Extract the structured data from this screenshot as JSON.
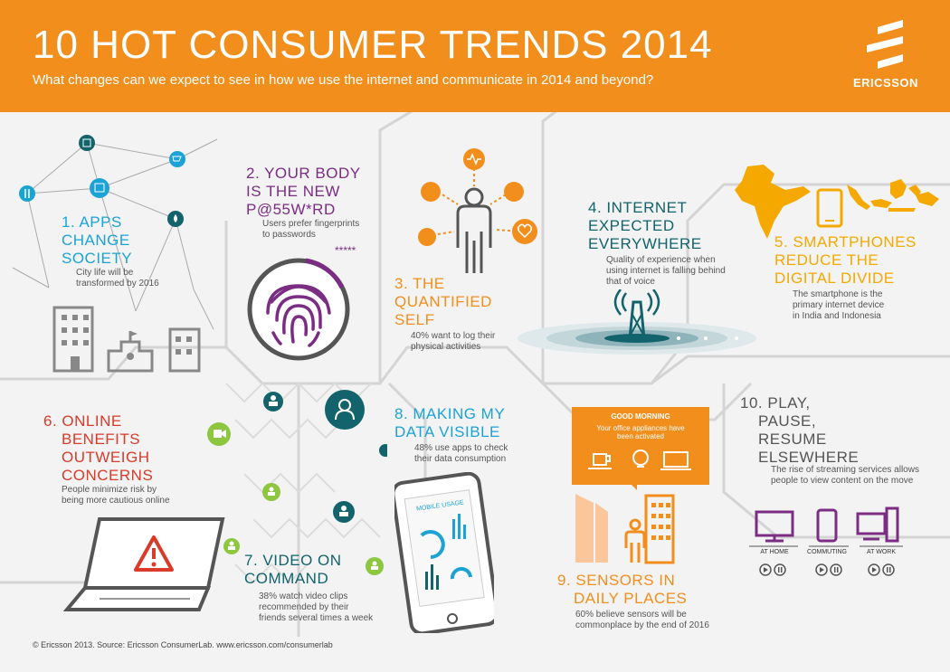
{
  "header": {
    "title": "10 HOT CONSUMER TRENDS 2014",
    "subtitle": "What changes can we expect to see in how we use the internet and communicate in 2014 and beyond?",
    "logo_text": "ERICSSON"
  },
  "trends": [
    {
      "title": [
        "1. APPS",
        "CHANGE",
        "SOCIETY"
      ],
      "text": [
        "City life will be",
        "transformed by 2016"
      ]
    },
    {
      "title": [
        "2. YOUR BODY",
        "IS THE NEW",
        "P@55W*RD"
      ],
      "text": [
        "Users prefer fingerprints",
        "to passwords"
      ],
      "password_stars": "*****"
    },
    {
      "title": [
        "3. THE",
        "QUANTIFIED",
        "SELF"
      ],
      "text": [
        "40% want to log their",
        "physical activities"
      ]
    },
    {
      "title": [
        "4. INTERNET",
        "EXPECTED",
        "EVERYWHERE"
      ],
      "text": [
        "Quality of experience when",
        "using internet is falling behind",
        "that of voice"
      ]
    },
    {
      "title": [
        "5. SMARTPHONES",
        "REDUCE THE",
        "DIGITAL DIVIDE"
      ],
      "text": [
        "The smartphone is the",
        "primary internet device",
        "in India and Indonesia"
      ]
    },
    {
      "title": [
        "6. ONLINE",
        "BENEFITS",
        "OUTWEIGH",
        "CONCERNS"
      ],
      "text": [
        "People minimize risk by",
        "being more cautious online"
      ]
    },
    {
      "title": [
        "7. VIDEO ON",
        "COMMAND"
      ],
      "text": [
        "38% watch video clips",
        "recommended by their",
        "friends several times a week"
      ]
    },
    {
      "title": [
        "8. MAKING MY",
        "DATA VISIBLE"
      ],
      "text": [
        "48% use apps to check",
        "their data consumption"
      ],
      "screen_label": "MOBILE USAGE"
    },
    {
      "title": [
        "9. SENSORS IN",
        "DAILY PLACES"
      ],
      "text": [
        "60% believe sensors will be",
        "commonplace by the end of 2016"
      ],
      "notice_title": "GOOD MORNING",
      "notice_text": [
        "Your office appliances have",
        "been activated"
      ]
    },
    {
      "title": [
        "10. PLAY,",
        "PAUSE,",
        "RESUME",
        "ELSEWHERE"
      ],
      "text": [
        "The rise of streaming services allows",
        "people to view content on the move"
      ],
      "devices": [
        "AT HOME",
        "COMMUTING",
        "AT WORK"
      ]
    }
  ],
  "footer": "© Ericsson 2013. Source: Ericsson ConsumerLab. www.ericsson.com/consumerlab",
  "colors": {
    "orange": "#f28e1c",
    "blue": "#1ba3d6",
    "purple": "#7b2c83",
    "teal": "#12636b",
    "yellow": "#f5a800",
    "red": "#d93a2a",
    "green": "#8dc63f",
    "gray": "#888888"
  }
}
